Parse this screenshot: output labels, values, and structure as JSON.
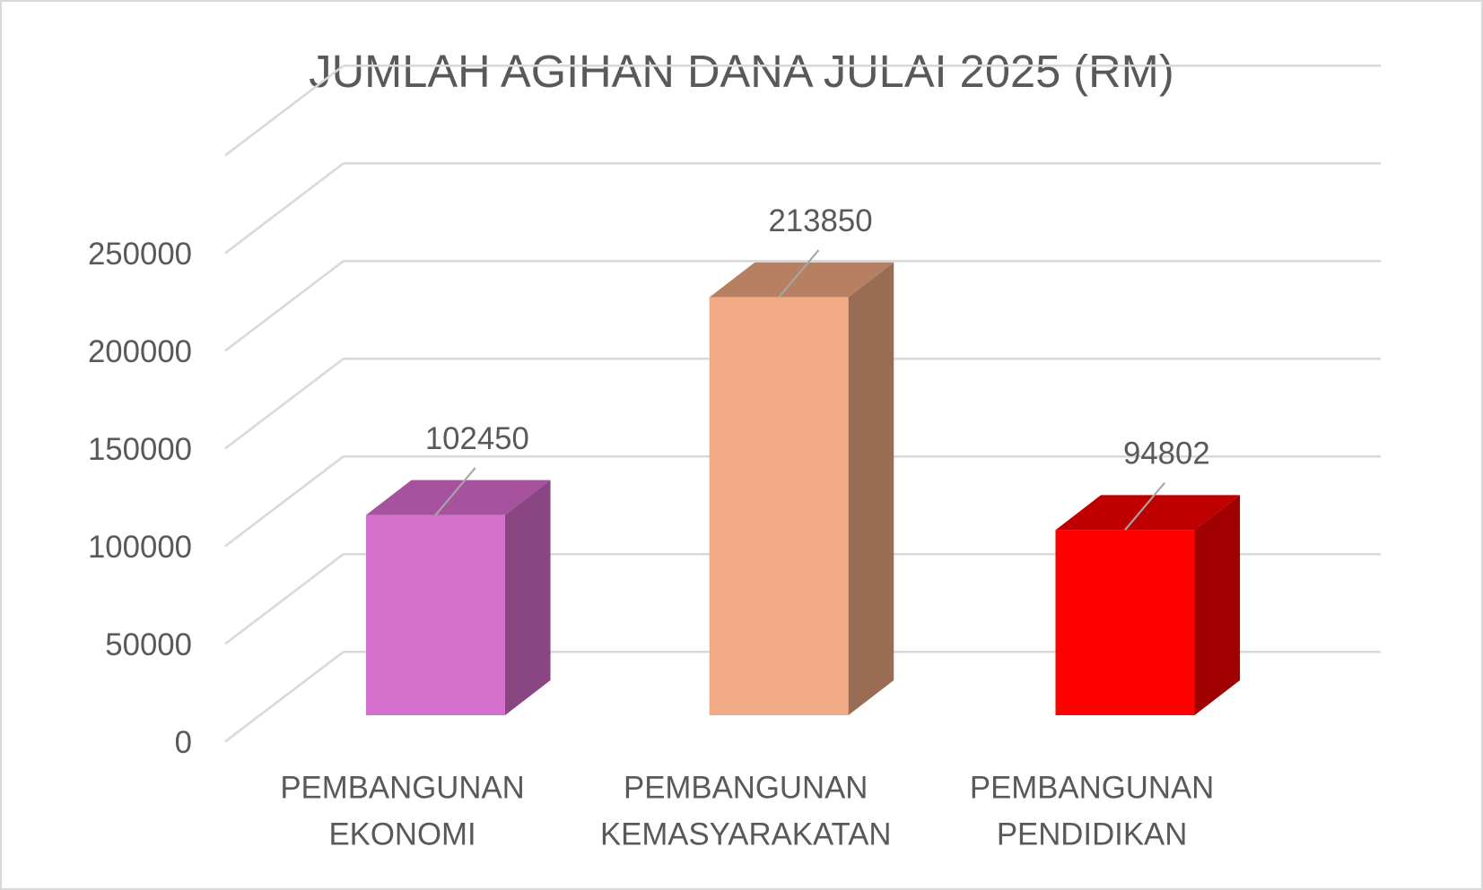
{
  "chart_data": {
    "type": "bar",
    "style": "3d-column",
    "title": "JUMLAH AGIHAN DANA JULAI 2025 (RM)",
    "xlabel": "",
    "ylabel": "",
    "ylim": [
      0,
      250000
    ],
    "yticks": [
      0,
      50000,
      100000,
      150000,
      200000,
      250000
    ],
    "ytick_labels": [
      "0",
      "50000",
      "100000",
      "150000",
      "200000",
      "250000"
    ],
    "grid": true,
    "legend": "none",
    "categories": [
      [
        "PEMBANGUNAN",
        "EKONOMI"
      ],
      [
        "PEMBANGUNAN",
        "KEMASYARAKATAN"
      ],
      [
        "PEMBANGUNAN",
        "PENDIDIKAN"
      ]
    ],
    "values": [
      102450,
      213850,
      94802
    ],
    "data_labels": [
      "102450",
      "213850",
      "94802"
    ],
    "colors": [
      {
        "front": "#D56FCC",
        "top": "#A7529E",
        "side": "#8A4682"
      },
      {
        "front": "#F1AA85",
        "top": "#B88062",
        "side": "#9A6C53"
      },
      {
        "front": "#FF0000",
        "top": "#C00000",
        "side": "#A00000"
      }
    ]
  }
}
